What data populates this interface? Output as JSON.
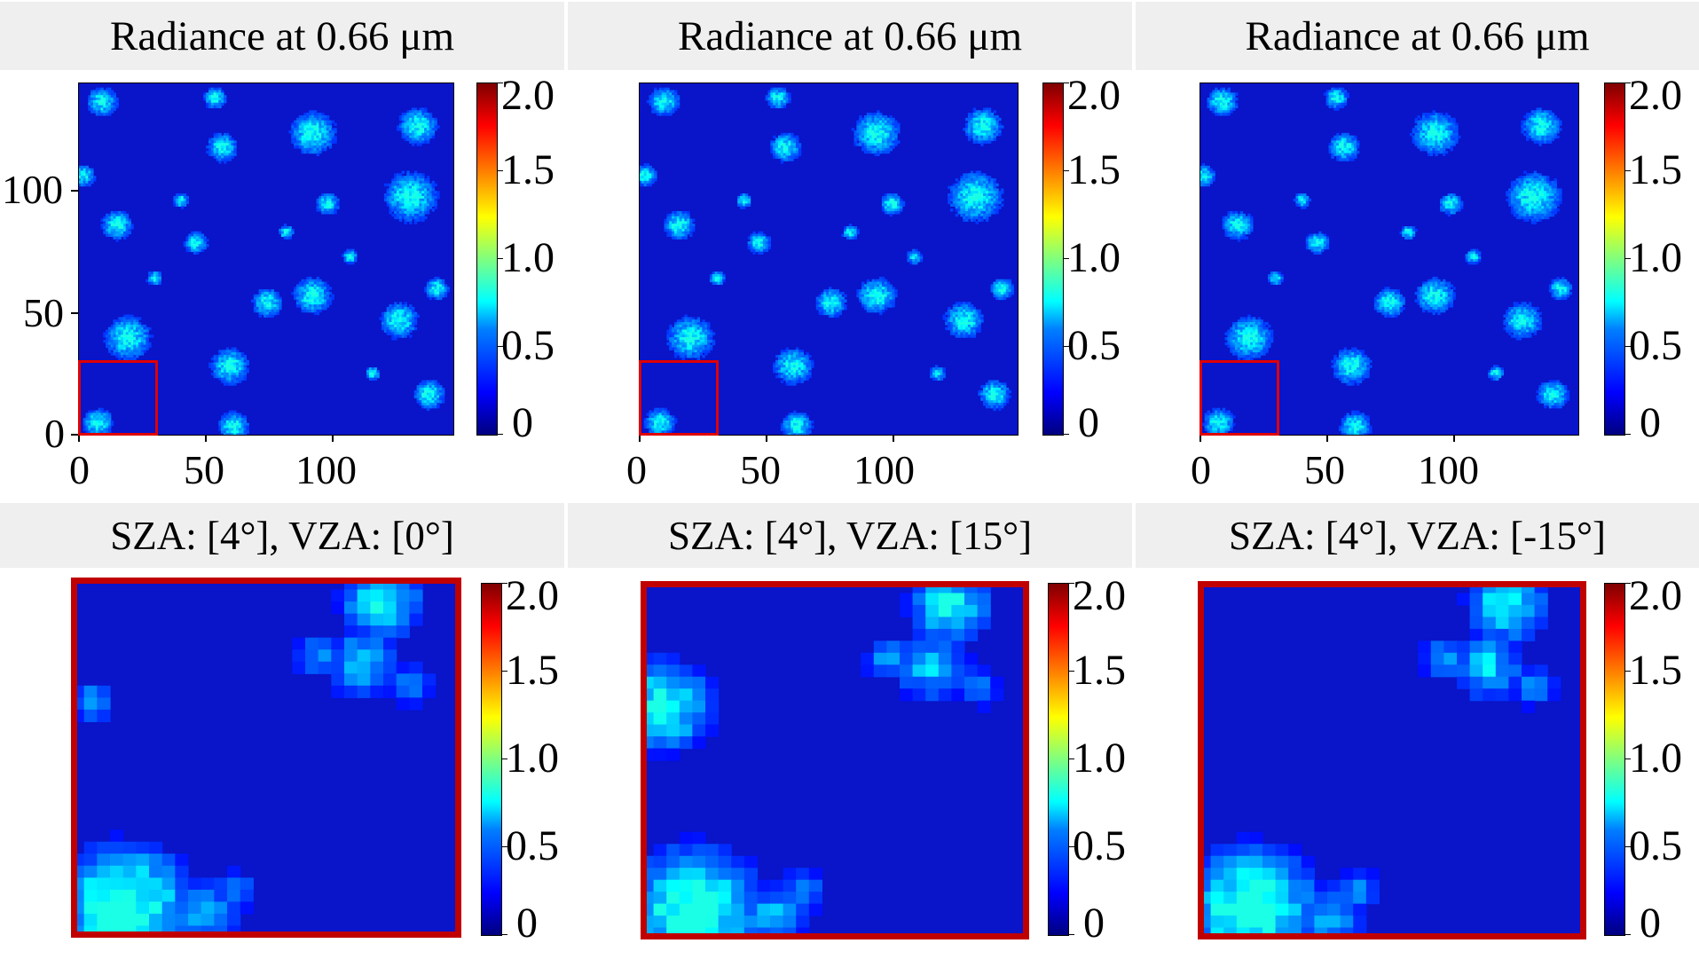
{
  "chart_data": [
    {
      "type": "heatmap",
      "title": "Radiance at 0.66 μm",
      "xticks": [
        "0",
        "50",
        "100"
      ],
      "yticks": [
        "0",
        "50",
        "100"
      ],
      "colorbar_ticks": [
        "0",
        "0.5",
        "1.0",
        "1.5",
        "2.0"
      ],
      "colorbar_range": [
        0,
        2.0
      ],
      "colormap": "jet",
      "zoom_region": {
        "x": [
          0,
          30
        ],
        "y": [
          0,
          30
        ]
      }
    },
    {
      "type": "heatmap",
      "title": "Radiance at 0.66 μm",
      "xticks": [
        "0",
        "50",
        "100"
      ],
      "colorbar_ticks": [
        "0",
        "0.5",
        "1.0",
        "1.5",
        "2.0"
      ],
      "colorbar_range": [
        0,
        2.0
      ],
      "colormap": "jet",
      "zoom_region": {
        "x": [
          0,
          30
        ],
        "y": [
          0,
          30
        ]
      }
    },
    {
      "type": "heatmap",
      "title": "Radiance at 0.66 μm",
      "xticks": [
        "0",
        "50",
        "100"
      ],
      "colorbar_ticks": [
        "0",
        "0.5",
        "1.0",
        "1.5",
        "2.0"
      ],
      "colorbar_range": [
        0,
        2.0
      ],
      "colormap": "jet",
      "zoom_region": {
        "x": [
          0,
          30
        ],
        "y": [
          0,
          30
        ]
      }
    },
    {
      "type": "heatmap",
      "title": "SZA: [4°], VZA: [0°]",
      "colorbar_ticks": [
        "0",
        "0.5",
        "1.0",
        "1.5",
        "2.0"
      ],
      "colorbar_range": [
        0,
        2.0
      ],
      "colormap": "jet"
    },
    {
      "type": "heatmap",
      "title": "SZA: [4°], VZA: [15°]",
      "colorbar_ticks": [
        "0",
        "0.5",
        "1.0",
        "1.5",
        "2.0"
      ],
      "colorbar_range": [
        0,
        2.0
      ],
      "colormap": "jet"
    },
    {
      "type": "heatmap",
      "title": "SZA: [4°], VZA: [-15°]",
      "colorbar_ticks": [
        "0",
        "0.5",
        "1.0",
        "1.5",
        "2.0"
      ],
      "colorbar_range": [
        0,
        2.0
      ],
      "colormap": "jet"
    }
  ],
  "colors": {
    "zoom_frame": "#c00000",
    "background_field": "#0a14c8",
    "header_bg": "#efefef"
  }
}
